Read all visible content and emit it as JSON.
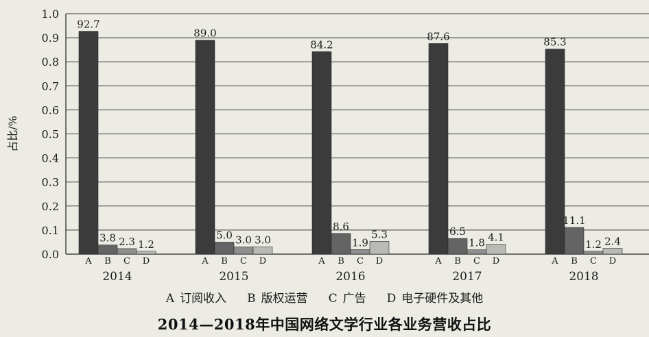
{
  "chart_data": {
    "type": "bar",
    "title": "2014—2018年中国网络文学行业各业务营收占比",
    "ylabel": "占比/%",
    "ylim": [
      0,
      1.0
    ],
    "yticks": [
      "0.0",
      "0.1",
      "0.2",
      "0.3",
      "0.4",
      "0.5",
      "0.6",
      "0.7",
      "0.8",
      "0.9",
      "1.0"
    ],
    "grid": true,
    "legend_position": "bottom",
    "categories": [
      "2014",
      "2015",
      "2016",
      "2017",
      "2018"
    ],
    "bar_keys": [
      "A",
      "B",
      "C",
      "D"
    ],
    "series": [
      {
        "key": "A",
        "name": "订阅收入",
        "color": "#3b3b3b",
        "values": [
          0.927,
          0.89,
          0.842,
          0.876,
          0.853
        ],
        "labels": [
          "92.7",
          "89.0",
          "84.2",
          "87.6",
          "85.3"
        ]
      },
      {
        "key": "B",
        "name": "版权运营",
        "color": "#646464",
        "values": [
          0.038,
          0.05,
          0.086,
          0.065,
          0.111
        ],
        "labels": [
          "3.8",
          "5.0",
          "8.6",
          "6.5",
          "11.1"
        ]
      },
      {
        "key": "C",
        "name": "广告",
        "color": "#8f8f8f",
        "values": [
          0.023,
          0.03,
          0.019,
          0.018,
          0.012
        ],
        "labels": [
          "2.3",
          "3.0",
          "1.9",
          "1.8",
          "1.2"
        ]
      },
      {
        "key": "D",
        "name": "电子硬件及其他",
        "color": "#b9b9b6",
        "values": [
          0.012,
          0.03,
          0.053,
          0.041,
          0.024
        ],
        "labels": [
          "1.2",
          "3.0",
          "5.3",
          "4.1",
          "2.4"
        ]
      }
    ]
  }
}
